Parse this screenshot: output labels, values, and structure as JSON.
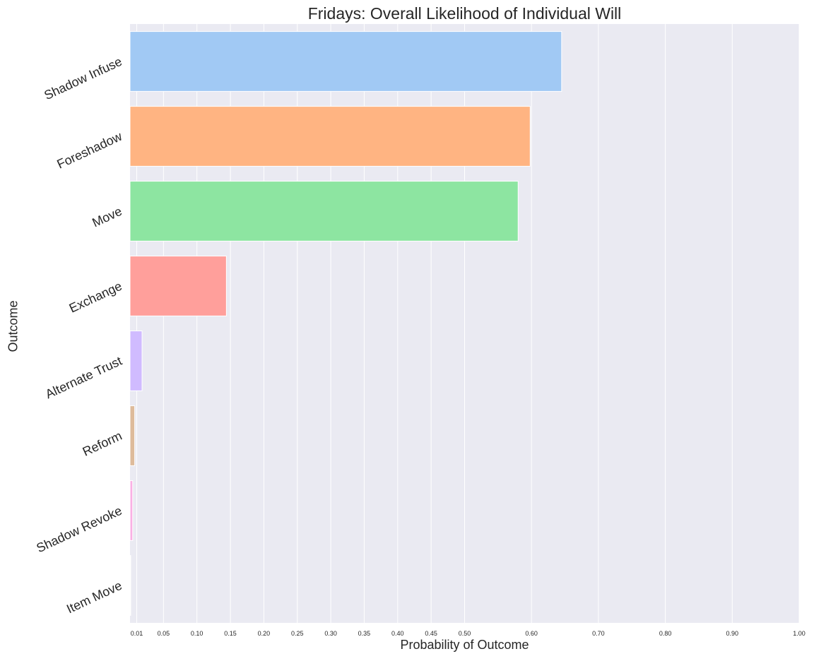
{
  "chart_data": {
    "type": "bar",
    "orientation": "horizontal",
    "title": "Fridays: Overall Likelihood of Individual Will",
    "xlabel": "Probability of Outcome",
    "ylabel": "Outcome",
    "xlim": [
      0,
      1.0
    ],
    "xticks": [
      0.01,
      0.05,
      0.1,
      0.15,
      0.2,
      0.25,
      0.3,
      0.35,
      0.4,
      0.45,
      0.5,
      0.6,
      0.7,
      0.8,
      0.9,
      1.0
    ],
    "xtick_labels": [
      "0.01",
      "0.05",
      "0.10",
      "0.15",
      "0.20",
      "0.25",
      "0.30",
      "0.35",
      "0.40",
      "0.45",
      "0.50",
      "0.60",
      "0.70",
      "0.80",
      "0.90",
      "1.00"
    ],
    "grid": true,
    "background": "#eaeaf2",
    "categories": [
      "Shadow Infuse",
      "Foreshadow",
      "Move",
      "Exchange",
      "Alternate Trust",
      "Reform",
      "Shadow Revoke",
      "Item Move"
    ],
    "values": [
      0.645,
      0.598,
      0.58,
      0.144,
      0.018,
      0.007,
      0.004,
      0.001
    ],
    "colors": [
      "#a1c9f4",
      "#ffb482",
      "#8de5a1",
      "#ff9f9b",
      "#d0bbff",
      "#debb9b",
      "#fab0e4",
      "#cfcfcf"
    ]
  }
}
